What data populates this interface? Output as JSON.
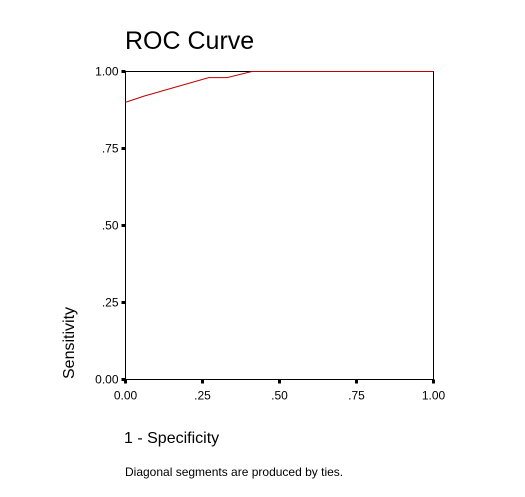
{
  "chart_data": {
    "type": "line",
    "title": "ROC Curve",
    "xlabel": "1 - Specificity",
    "ylabel": "Sensitivity",
    "xlim": [
      0,
      1
    ],
    "ylim": [
      0,
      1
    ],
    "x_ticks": [
      0,
      0.25,
      0.5,
      0.75,
      1
    ],
    "x_tick_labels": [
      "0.00",
      ".25",
      ".50",
      ".75",
      "1.00"
    ],
    "y_ticks": [
      0,
      0.25,
      0.5,
      0.75,
      1
    ],
    "y_tick_labels": [
      "0.00",
      ".25",
      ".50",
      ".75",
      "1.00"
    ],
    "grid": false,
    "series": [
      {
        "x": [
          0,
          0.06,
          0.27,
          0.33,
          0.41,
          1.0
        ],
        "y": [
          0.9,
          0.92,
          0.98,
          0.98,
          1.0,
          1.0
        ],
        "color": "#c00000"
      }
    ],
    "annotations": [
      "Diagonal segments are produced by ties."
    ]
  }
}
